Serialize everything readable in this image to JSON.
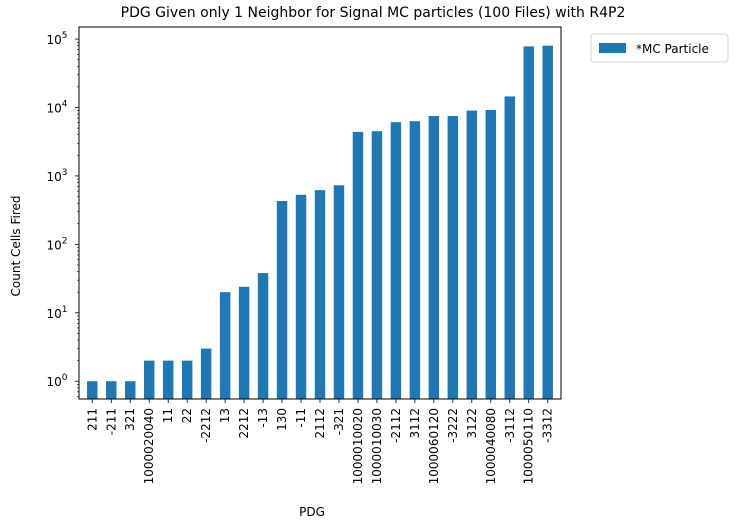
{
  "chart_data": {
    "type": "bar",
    "title": "PDG Given only 1 Neighbor for Signal MC particles (100 Files) with R4P2",
    "xlabel": "PDG",
    "ylabel": "Count Cells Fired",
    "yscale": "log",
    "ylim": [
      0.55,
      150000
    ],
    "grid": false,
    "legend_position": "outside-top-right",
    "categories": [
      "211",
      "-211",
      "321",
      "1000020040",
      "11",
      "22",
      "-2212",
      "13",
      "2212",
      "-13",
      "130",
      "-11",
      "2112",
      "-321",
      "1000010020",
      "1000010030",
      "-2112",
      "3112",
      "1000060120",
      "-3222",
      "3122",
      "1000040080",
      "-3112",
      "1000050110",
      "-3312"
    ],
    "y_ticks": [
      {
        "value": 1,
        "base": "10",
        "exp": "0"
      },
      {
        "value": 10,
        "base": "10",
        "exp": "1"
      },
      {
        "value": 100,
        "base": "10",
        "exp": "2"
      },
      {
        "value": 1000,
        "base": "10",
        "exp": "3"
      },
      {
        "value": 10000,
        "base": "10",
        "exp": "4"
      },
      {
        "value": 100000,
        "base": "10",
        "exp": "5"
      }
    ],
    "series": [
      {
        "name": "*MC Particle",
        "color": "#1f77b4",
        "values": [
          1,
          1,
          1,
          2,
          2,
          2,
          3,
          20,
          24,
          38,
          430,
          530,
          620,
          730,
          4400,
          4500,
          6100,
          6300,
          7500,
          7500,
          9000,
          9200,
          14500,
          78000,
          80000
        ]
      }
    ]
  }
}
